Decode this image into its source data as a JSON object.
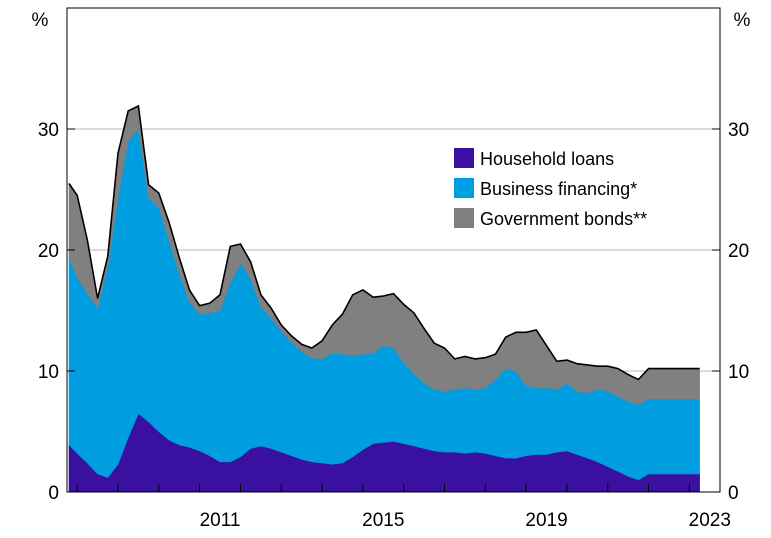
{
  "chart_data": {
    "type": "area",
    "stacked": true,
    "x_unit": "year",
    "x": [
      2007.8,
      2008.0,
      2008.25,
      2008.5,
      2008.75,
      2009.0,
      2009.25,
      2009.5,
      2009.75,
      2010.0,
      2010.25,
      2010.5,
      2010.75,
      2011.0,
      2011.25,
      2011.5,
      2011.75,
      2012.0,
      2012.25,
      2012.5,
      2012.75,
      2013.0,
      2013.25,
      2013.5,
      2013.75,
      2014.0,
      2014.25,
      2014.5,
      2014.75,
      2015.0,
      2015.25,
      2015.5,
      2015.75,
      2016.0,
      2016.25,
      2016.5,
      2016.75,
      2017.0,
      2017.25,
      2017.5,
      2017.75,
      2018.0,
      2018.25,
      2018.5,
      2018.75,
      2019.0,
      2019.25,
      2019.5,
      2019.75,
      2020.0,
      2020.25,
      2020.5,
      2020.75,
      2021.0,
      2021.25,
      2021.5,
      2021.75,
      2022.0,
      2022.25,
      2022.5,
      2022.75,
      2023.0,
      2023.25
    ],
    "series": [
      {
        "name": "Household loans",
        "color": "#3a10a0",
        "values": [
          3.9,
          3.2,
          2.4,
          1.5,
          1.2,
          2.3,
          4.5,
          6.5,
          5.8,
          5.0,
          4.3,
          3.9,
          3.7,
          3.4,
          3.0,
          2.5,
          2.5,
          2.9,
          3.6,
          3.8,
          3.6,
          3.3,
          3.0,
          2.7,
          2.5,
          2.4,
          2.3,
          2.4,
          2.9,
          3.5,
          4.0,
          4.1,
          4.2,
          4.0,
          3.8,
          3.6,
          3.4,
          3.3,
          3.3,
          3.2,
          3.3,
          3.2,
          3.0,
          2.8,
          2.8,
          3.0,
          3.1,
          3.1,
          3.3,
          3.4,
          3.1,
          2.8,
          2.5,
          2.1,
          1.7,
          1.3,
          1.0,
          1.5,
          1.5,
          1.5,
          1.5,
          1.5,
          1.5
        ]
      },
      {
        "name": "Business financing*",
        "color": "#009ee0",
        "values": [
          15.5,
          14.5,
          14.0,
          13.7,
          17.5,
          22.0,
          24.5,
          23.5,
          18.5,
          18.5,
          16.5,
          14.2,
          12.0,
          11.3,
          11.8,
          12.5,
          14.8,
          16.0,
          14.0,
          11.5,
          10.8,
          10.0,
          9.4,
          8.9,
          8.6,
          8.6,
          9.2,
          9.0,
          8.4,
          7.9,
          7.5,
          8.0,
          7.7,
          6.7,
          6.0,
          5.4,
          5.1,
          5.0,
          5.2,
          5.4,
          5.2,
          5.4,
          6.3,
          7.4,
          7.2,
          5.8,
          5.5,
          5.5,
          5.2,
          5.6,
          5.2,
          5.4,
          6.0,
          6.2,
          6.2,
          6.2,
          6.2,
          6.2,
          6.2,
          6.2,
          6.2,
          6.2,
          6.2
        ]
      },
      {
        "name": "Government bonds**",
        "color": "#808080",
        "values": [
          6.1,
          6.8,
          4.4,
          0.8,
          0.8,
          3.7,
          2.5,
          1.9,
          1.1,
          1.2,
          1.5,
          1.3,
          1.0,
          0.7,
          0.8,
          1.3,
          3.0,
          1.6,
          1.4,
          1.0,
          0.8,
          0.5,
          0.5,
          0.6,
          0.8,
          1.5,
          2.3,
          3.3,
          5.0,
          5.3,
          4.6,
          4.1,
          4.5,
          4.8,
          5.0,
          4.5,
          3.8,
          3.6,
          2.5,
          2.6,
          2.5,
          2.5,
          2.1,
          2.6,
          3.2,
          4.4,
          4.8,
          3.5,
          2.3,
          1.9,
          2.3,
          2.3,
          1.9,
          2.1,
          2.3,
          2.2,
          2.1,
          2.5,
          2.5,
          2.5,
          2.5,
          2.5,
          2.5
        ]
      }
    ],
    "xticks": [
      "2011",
      "2015",
      "2019",
      "2023"
    ],
    "xtick_values": [
      2011,
      2015,
      2019,
      2023
    ],
    "yticks": [
      "0",
      "10",
      "20",
      "30"
    ],
    "ytick_values": [
      0,
      10,
      20,
      30
    ],
    "ylim": [
      0,
      40
    ],
    "xlim": [
      2007.75,
      2023.75
    ],
    "yunit_left": "%",
    "yunit_right": "%",
    "grid": "horizontal",
    "legend_position": "right-middle",
    "total_line_color": "#000000"
  }
}
